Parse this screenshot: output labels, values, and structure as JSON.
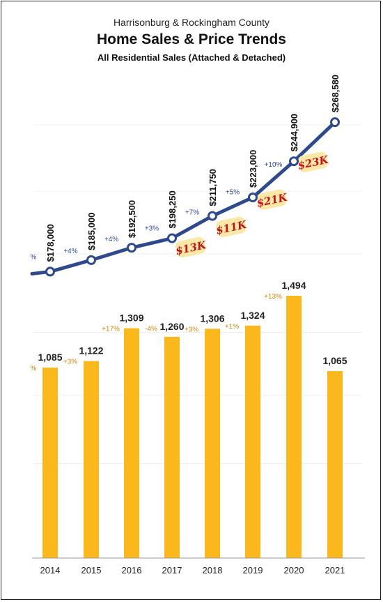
{
  "header": {
    "region": "Harrisonburg & Rockingham County",
    "title": "Home Sales & Price Trends",
    "subtitle": "All Residential Sales (Attached & Detached)"
  },
  "colors": {
    "line": "#2f4a8c",
    "bar": "#fbb81c",
    "bar_pct": "#c8860a",
    "line_pct": "#2f4a8c",
    "note": "#c0141a",
    "note_bg": "#fbe7a6"
  },
  "chart_data": [
    {
      "type": "line",
      "title": "",
      "xlabel": "",
      "ylabel": "",
      "x": [
        "2014",
        "2015",
        "2016",
        "2017",
        "2018",
        "2019",
        "2020",
        "2021"
      ],
      "series": [
        {
          "values": [
            178000,
            185000,
            192500,
            198250,
            211750,
            223000,
            244900,
            268580
          ]
        }
      ],
      "value_labels": [
        "$178,000",
        "$185,000",
        "$192,500",
        "$198,250",
        "$211,750",
        "$223,000",
        "$244,900",
        "$268,580"
      ],
      "pct_labels": [
        "%",
        "+4%",
        "+4%",
        "+3%",
        "+7%",
        "+5%",
        "+10%",
        ""
      ],
      "annotations": [
        "$13K",
        "$11K",
        "$21K",
        "$23K"
      ],
      "ylim": [
        160000,
        275000
      ],
      "grid": true
    },
    {
      "type": "bar",
      "title": "",
      "xlabel": "",
      "ylabel": "",
      "categories": [
        "2014",
        "2015",
        "2016",
        "2017",
        "2018",
        "2019",
        "2020",
        "2021"
      ],
      "values": [
        1085,
        1122,
        1309,
        1260,
        1306,
        1324,
        1494,
        1065
      ],
      "value_labels": [
        "1,085",
        "1,122",
        "1,309",
        "1,260",
        "1,306",
        "1,324",
        "1,494",
        "1,065"
      ],
      "pct_labels": [
        "%",
        "+3%",
        "+17%",
        "-4%",
        "+3%",
        "+1%",
        "+13%",
        ""
      ],
      "ylim": [
        0,
        1500
      ],
      "grid": true
    }
  ]
}
